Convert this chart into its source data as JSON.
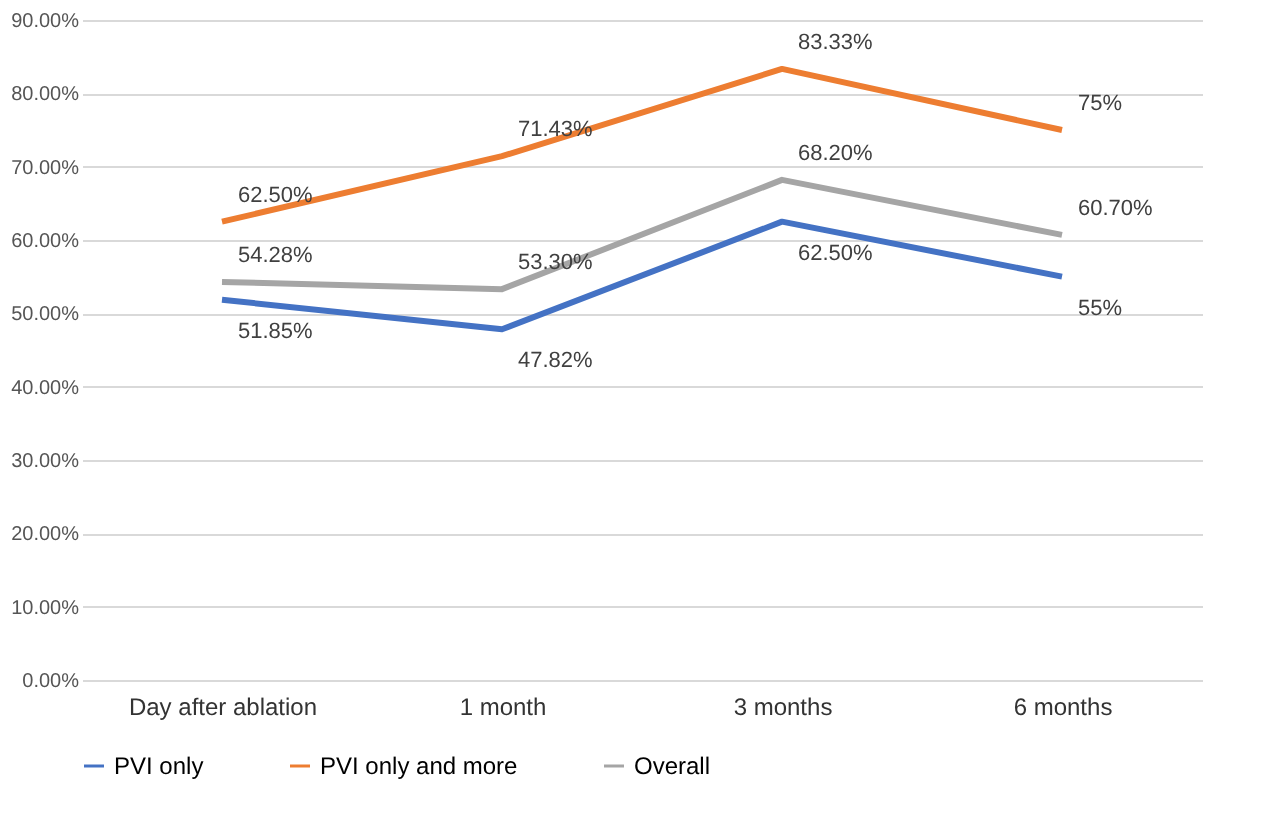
{
  "chart_data": {
    "type": "line",
    "categories": [
      "Day after ablation",
      "1 month",
      "3 months",
      "6 months"
    ],
    "series": [
      {
        "name": "PVI only",
        "color": "#4472c4",
        "values": [
          51.85,
          47.82,
          62.5,
          55
        ],
        "value_labels": [
          "51.85%",
          "47.82%",
          "62.50%",
          "55%"
        ]
      },
      {
        "name": "PVI only and more",
        "color": "#ed7d31",
        "values": [
          62.5,
          71.43,
          83.33,
          75
        ],
        "value_labels": [
          "62.50%",
          "71.43%",
          "83.33%",
          "75%"
        ]
      },
      {
        "name": "Overall",
        "color": "#a5a5a5",
        "values": [
          54.28,
          53.3,
          68.2,
          60.7
        ],
        "value_labels": [
          "54.28%",
          "53.30%",
          "68.20%",
          "60.70%"
        ]
      }
    ],
    "ylim": [
      0,
      90
    ],
    "yticks": [
      {
        "value": 0,
        "label": "0.00%"
      },
      {
        "value": 10,
        "label": "10.00%"
      },
      {
        "value": 20,
        "label": "20.00%"
      },
      {
        "value": 30,
        "label": "30.00%"
      },
      {
        "value": 40,
        "label": "40.00%"
      },
      {
        "value": 50,
        "label": "50.00%"
      },
      {
        "value": 60,
        "label": "60.00%"
      },
      {
        "value": 70,
        "label": "70.00%"
      },
      {
        "value": 80,
        "label": "80.00%"
      },
      {
        "value": 90,
        "label": "90.00%"
      }
    ],
    "grid": "y",
    "legend": "bottom",
    "marker": "none",
    "line_style": "solid"
  }
}
